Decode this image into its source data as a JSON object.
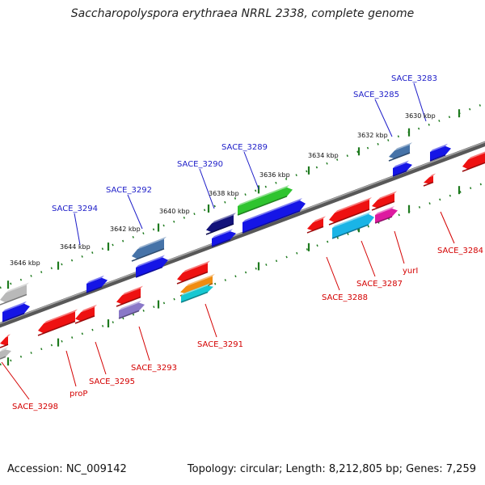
{
  "title": "Saccharopolyspora erythraea NRRL 2338, complete genome",
  "accession": "Accession: NC_009142",
  "summary": "Topology: circular; Length: 8,212,805 bp; Genes: 7,259",
  "colors": {
    "backbone": "#6e6e6e",
    "tick": "#1e7a1e",
    "up_label": "#1c1cc8",
    "down_label": "#d40000"
  },
  "ruler_labels": [
    "3630 kbp",
    "3632 kbp",
    "3634 kbp",
    "3636 kbp",
    "3638 kbp",
    "3640 kbp",
    "3642 kbp",
    "3644 kbp",
    "3646 kbp"
  ],
  "genes_forward": [
    "SACE_3283",
    "SACE_3285",
    "SACE_3289",
    "SACE_3290",
    "SACE_3292",
    "SACE_3294"
  ],
  "genes_reverse": [
    "SACE_3284",
    "yurI",
    "SACE_3287",
    "SACE_3288",
    "SACE_3291",
    "SACE_3293",
    "SACE_3295",
    "proP",
    "SACE_3298"
  ],
  "feature_colors": {
    "forward": [
      "#1515e6",
      "#1515e6",
      "#4673a8",
      "#12127a",
      "#1515e6",
      "#2fc42f",
      "#1515e6",
      "#1515e6",
      "#4673a8",
      "#1515e6",
      "#b9b9b9",
      "#1515e6"
    ],
    "reverse": [
      "#ee1111",
      "#ee1111",
      "#ee1111",
      "#dd1aa0",
      "#ee1111",
      "#1ab4e6",
      "#ee1111",
      "#ee1111",
      "#f08c10",
      "#16c8d2",
      "#ee1111",
      "#8a78c8",
      "#ee1111",
      "#ee1111",
      "#ee1111",
      "#b9b9b9"
    ]
  }
}
